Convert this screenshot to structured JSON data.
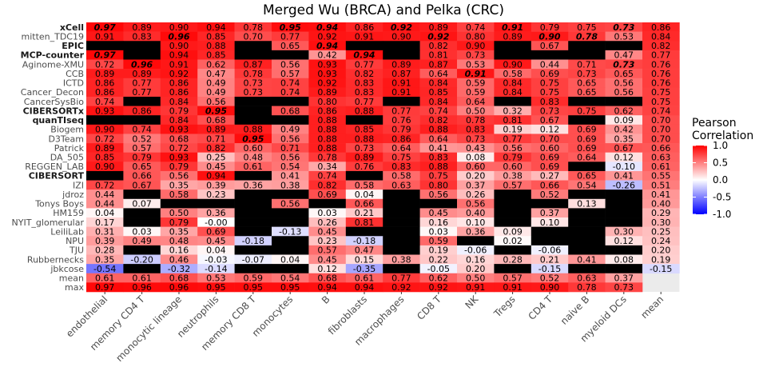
{
  "chart_data": {
    "type": "heatmap",
    "title": "Merged Wu (BRCA) and Pelka (CRC)",
    "xlabel": "",
    "ylabel": "",
    "columns": [
      "endothelial",
      "memory CD4 T",
      "monocytic lineage",
      "neutrophils",
      "memory CD8 T",
      "monocytes",
      "B",
      "fibroblasts",
      "macrophages",
      "CD8 T",
      "NK",
      "Tregs",
      "CD4 T",
      "naive B",
      "myeloid DCs",
      "mean"
    ],
    "rows": [
      {
        "name": "xCell",
        "bold": true,
        "values": [
          "0.97",
          "0.89",
          "0.90",
          "0.94",
          "0.78",
          "0.95",
          "0.94",
          "0.86",
          "0.92",
          "0.89",
          "0.74",
          "0.91",
          "0.79",
          "0.75",
          "0.73",
          "0.86"
        ],
        "best": [
          0,
          5,
          6,
          8,
          11,
          14
        ]
      },
      {
        "name": "mitten_TDC19",
        "bold": false,
        "values": [
          "0.91",
          "0.83",
          "0.96",
          "0.85",
          "0.70",
          "0.77",
          "0.92",
          "0.91",
          "0.90",
          "0.92",
          "0.80",
          "0.89",
          "0.90",
          "0.78",
          "0.53",
          "0.84"
        ],
        "best": [
          2,
          9,
          12,
          13
        ]
      },
      {
        "name": "EPIC",
        "bold": true,
        "values": [
          null,
          null,
          "0.90",
          "0.88",
          null,
          "0.65",
          "0.94",
          null,
          null,
          "0.82",
          "0.90",
          null,
          "0.67",
          null,
          null,
          "0.82"
        ],
        "best": [
          6
        ]
      },
      {
        "name": "MCP-counter",
        "bold": true,
        "values": [
          "0.97",
          null,
          "0.94",
          "0.85",
          null,
          null,
          "0.42",
          "0.94",
          null,
          "0.81",
          "0.73",
          null,
          null,
          null,
          "0.47",
          "0.77"
        ],
        "best": [
          0,
          7
        ]
      },
      {
        "name": "Aginome-XMU",
        "bold": false,
        "values": [
          "0.72",
          "0.96",
          "0.91",
          "0.62",
          "0.87",
          "0.56",
          "0.93",
          "0.77",
          "0.89",
          "0.87",
          "0.53",
          "0.90",
          "0.44",
          "0.71",
          "0.73",
          "0.76"
        ],
        "best": [
          1,
          14
        ]
      },
      {
        "name": "CCB",
        "bold": false,
        "values": [
          "0.89",
          "0.89",
          "0.92",
          "0.47",
          "0.78",
          "0.57",
          "0.93",
          "0.82",
          "0.87",
          "0.64",
          "0.91",
          "0.58",
          "0.69",
          "0.73",
          "0.65",
          "0.76"
        ],
        "best": [
          10
        ]
      },
      {
        "name": "ICTD",
        "bold": false,
        "values": [
          "0.86",
          "0.77",
          "0.86",
          "0.49",
          "0.73",
          "0.74",
          "0.92",
          "0.83",
          "0.91",
          "0.84",
          "0.59",
          "0.84",
          "0.75",
          "0.65",
          "0.56",
          "0.76"
        ],
        "best": []
      },
      {
        "name": "Cancer_Decon",
        "bold": false,
        "values": [
          "0.86",
          "0.77",
          "0.86",
          "0.49",
          "0.73",
          "0.74",
          "0.89",
          "0.83",
          "0.91",
          "0.85",
          "0.59",
          "0.84",
          "0.75",
          "0.65",
          "0.56",
          "0.75"
        ],
        "best": []
      },
      {
        "name": "CancerSysBio",
        "bold": false,
        "values": [
          "0.74",
          null,
          "0.84",
          "0.56",
          null,
          null,
          "0.80",
          "0.77",
          null,
          "0.84",
          "0.64",
          null,
          "0.83",
          null,
          null,
          "0.75"
        ],
        "best": []
      },
      {
        "name": "CIBERSORTx",
        "bold": true,
        "values": [
          "0.93",
          "0.86",
          "0.79",
          "0.95",
          null,
          "0.68",
          "0.86",
          "0.88",
          "0.77",
          "0.74",
          "0.50",
          "0.32",
          "0.73",
          "0.75",
          "0.62",
          "0.74"
        ],
        "best": [
          3
        ]
      },
      {
        "name": "quanTIseq",
        "bold": true,
        "values": [
          null,
          null,
          "0.84",
          "0.68",
          null,
          null,
          "0.88",
          null,
          "0.76",
          "0.82",
          "0.78",
          "0.81",
          "0.67",
          null,
          "0.09",
          "0.70"
        ],
        "best": []
      },
      {
        "name": "Biogem",
        "bold": false,
        "values": [
          "0.90",
          "0.74",
          "0.93",
          "0.89",
          "0.88",
          "0.49",
          "0.88",
          "0.85",
          "0.79",
          "0.88",
          "0.83",
          "0.19",
          "0.12",
          "0.69",
          "0.42",
          "0.70"
        ],
        "best": []
      },
      {
        "name": "D3Team",
        "bold": false,
        "values": [
          "0.72",
          "0.52",
          "0.68",
          "0.71",
          "0.95",
          "0.56",
          "0.88",
          "0.88",
          "0.86",
          "0.64",
          "0.73",
          "0.77",
          "0.70",
          "0.69",
          "0.35",
          "0.70"
        ],
        "best": [
          4
        ]
      },
      {
        "name": "Patrick",
        "bold": false,
        "values": [
          "0.89",
          "0.57",
          "0.72",
          "0.82",
          "0.60",
          "0.71",
          "0.88",
          "0.73",
          "0.64",
          "0.41",
          "0.43",
          "0.56",
          "0.60",
          "0.69",
          "0.67",
          "0.66"
        ],
        "best": []
      },
      {
        "name": "DA_505",
        "bold": false,
        "values": [
          "0.85",
          "0.79",
          "0.93",
          "0.25",
          "0.48",
          "0.56",
          "0.78",
          "0.89",
          "0.75",
          "0.83",
          "0.08",
          "0.79",
          "0.69",
          "0.64",
          "0.12",
          "0.63"
        ],
        "best": []
      },
      {
        "name": "REGGEN_LAB",
        "bold": false,
        "values": [
          "0.90",
          "0.65",
          "0.79",
          "0.45",
          "0.61",
          "0.54",
          "0.34",
          "0.76",
          "0.83",
          "0.88",
          "0.60",
          "0.60",
          "0.69",
          null,
          "-0.10",
          "0.61"
        ],
        "best": []
      },
      {
        "name": "CIBERSORT",
        "bold": true,
        "values": [
          null,
          "0.66",
          "0.56",
          "0.94",
          null,
          "0.41",
          "0.74",
          null,
          "0.58",
          "0.75",
          "0.20",
          "0.38",
          "0.27",
          "0.65",
          "0.41",
          "0.55"
        ],
        "best": []
      },
      {
        "name": "IZI",
        "bold": false,
        "values": [
          "0.72",
          "0.67",
          "0.35",
          "0.39",
          "0.36",
          "0.38",
          "0.82",
          "0.58",
          "0.63",
          "0.80",
          "0.37",
          "0.57",
          "0.66",
          "0.54",
          "-0.26",
          "0.51"
        ],
        "best": []
      },
      {
        "name": "jdroz",
        "bold": false,
        "values": [
          "0.44",
          null,
          "0.58",
          "0.23",
          null,
          null,
          "0.69",
          "0.04",
          null,
          "0.56",
          "0.26",
          null,
          "0.52",
          null,
          null,
          "0.41"
        ],
        "best": []
      },
      {
        "name": "Tonys Boys",
        "bold": false,
        "values": [
          "0.44",
          "0.07",
          null,
          null,
          null,
          "0.56",
          null,
          "0.66",
          null,
          null,
          "0.56",
          null,
          null,
          "0.13",
          null,
          "0.40"
        ],
        "best": []
      },
      {
        "name": "HM159",
        "bold": false,
        "values": [
          "0.04",
          null,
          "0.50",
          "0.36",
          null,
          null,
          "0.03",
          "0.21",
          null,
          "0.45",
          "0.40",
          null,
          "0.37",
          null,
          null,
          "0.29"
        ],
        "best": []
      },
      {
        "name": "NYIT_glomerular",
        "bold": false,
        "values": [
          "0.17",
          null,
          "0.79",
          "-0.00",
          null,
          null,
          "0.26",
          "0.81",
          null,
          "0.16",
          "0.10",
          null,
          "0.10",
          null,
          null,
          "0.30"
        ],
        "best": []
      },
      {
        "name": "LeiliLab",
        "bold": false,
        "values": [
          "0.31",
          "0.03",
          "0.35",
          "0.69",
          null,
          "-0.13",
          "0.45",
          null,
          null,
          "0.03",
          "0.36",
          "0.09",
          null,
          null,
          "0.30",
          "0.25"
        ],
        "best": []
      },
      {
        "name": "NPU",
        "bold": false,
        "values": [
          "0.39",
          "0.49",
          "0.48",
          "0.45",
          "-0.18",
          null,
          "0.23",
          "-0.18",
          null,
          "0.59",
          null,
          "0.02",
          null,
          null,
          "0.12",
          "0.24"
        ],
        "best": []
      },
      {
        "name": "TJU",
        "bold": false,
        "values": [
          "0.28",
          null,
          "0.16",
          "0.04",
          null,
          null,
          "0.57",
          "0.47",
          null,
          "0.19",
          "-0.06",
          null,
          "-0.06",
          null,
          null,
          "0.20"
        ],
        "best": []
      },
      {
        "name": "Rubbernecks",
        "bold": false,
        "values": [
          "0.35",
          "-0.20",
          "0.46",
          "-0.03",
          "-0.07",
          "0.04",
          "0.45",
          "0.15",
          "0.38",
          "0.22",
          "0.16",
          "0.28",
          "0.21",
          "0.41",
          "0.08",
          "0.19"
        ],
        "best": []
      },
      {
        "name": "jbkcose",
        "bold": false,
        "values": [
          "-0.54",
          null,
          "-0.32",
          "-0.14",
          null,
          null,
          "0.12",
          "-0.35",
          null,
          "-0.05",
          "0.20",
          null,
          "-0.15",
          null,
          null,
          "-0.15"
        ],
        "best": []
      },
      {
        "name": "mean",
        "bold": false,
        "values": [
          "0.61",
          "0.61",
          "0.68",
          "0.53",
          "0.59",
          "0.54",
          "0.68",
          "0.61",
          "0.77",
          "0.62",
          "0.50",
          "0.57",
          "0.52",
          "0.63",
          "0.37",
          null
        ],
        "best": []
      },
      {
        "name": "max",
        "bold": false,
        "values": [
          "0.97",
          "0.96",
          "0.96",
          "0.95",
          "0.95",
          "0.95",
          "0.94",
          "0.94",
          "0.92",
          "0.92",
          "0.91",
          "0.91",
          "0.90",
          "0.78",
          "0.73",
          null
        ],
        "best": []
      }
    ],
    "legend": {
      "title_line1": "Pearson",
      "title_line2": "Correlation",
      "ticks": [
        "1.0",
        "0.5",
        "0.0",
        "-0.5",
        "-1.0"
      ],
      "tick_values": [
        1.0,
        0.5,
        0.0,
        -0.5,
        -1.0
      ],
      "placement": "right"
    },
    "colorscale": {
      "low": "#0000ff",
      "mid": "#ffffff",
      "high": "#ff0000",
      "min": -1,
      "max": 1
    },
    "missing_color": "#000000",
    "empty_color": "#ebebeb"
  }
}
